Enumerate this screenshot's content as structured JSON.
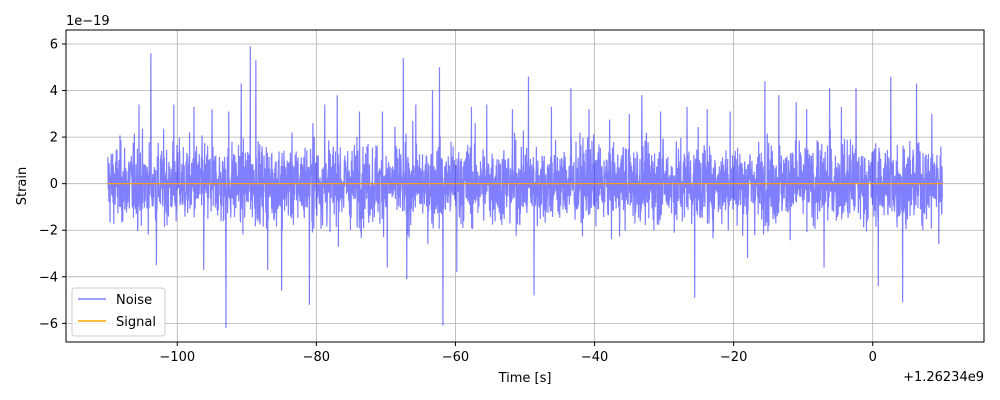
{
  "chart_data": {
    "type": "line",
    "xlabel": "Time [s]",
    "ylabel": "Strain",
    "x_offset_label": "+1.26234e9",
    "y_scale_label": "1e−19",
    "xlim": [
      -116,
      16
    ],
    "ylim": [
      -6.8,
      6.6
    ],
    "x_ticks": [
      -100,
      -80,
      -60,
      -40,
      -20,
      0
    ],
    "x_tick_labels": [
      "−100",
      "−80",
      "−60",
      "−40",
      "−20",
      "0"
    ],
    "y_ticks": [
      -6,
      -4,
      -2,
      0,
      2,
      4,
      6
    ],
    "y_tick_labels": [
      "−6",
      "−4",
      "−2",
      "0",
      "2",
      "4",
      "6"
    ],
    "grid": true,
    "legend_position": "lower-left",
    "series": [
      {
        "name": "Noise",
        "color": "#0000ff",
        "alpha": 0.5,
        "x_range": [
          -110,
          10
        ],
        "typical_amplitude": 2.2,
        "peaks": [
          {
            "x": -105.5,
            "y": 3.4
          },
          {
            "x": -103.8,
            "y": 5.6
          },
          {
            "x": -103.0,
            "y": -3.5
          },
          {
            "x": -100.5,
            "y": 3.4
          },
          {
            "x": -97.6,
            "y": 3.3
          },
          {
            "x": -96.2,
            "y": -3.7
          },
          {
            "x": -95.0,
            "y": 3.2
          },
          {
            "x": -93.0,
            "y": -6.2
          },
          {
            "x": -92.6,
            "y": 3.1
          },
          {
            "x": -90.8,
            "y": 4.3
          },
          {
            "x": -89.5,
            "y": 5.9
          },
          {
            "x": -88.7,
            "y": 5.3
          },
          {
            "x": -87.0,
            "y": -3.7
          },
          {
            "x": -85.0,
            "y": -4.6
          },
          {
            "x": -81.0,
            "y": -5.2
          },
          {
            "x": -80.5,
            "y": 2.6
          },
          {
            "x": -78.8,
            "y": 3.4
          },
          {
            "x": -77.0,
            "y": 3.8
          },
          {
            "x": -73.8,
            "y": 3.1
          },
          {
            "x": -70.5,
            "y": 3.1
          },
          {
            "x": -69.8,
            "y": -3.6
          },
          {
            "x": -67.5,
            "y": 5.4
          },
          {
            "x": -67.0,
            "y": -4.1
          },
          {
            "x": -65.7,
            "y": 3.4
          },
          {
            "x": -63.3,
            "y": 4.0
          },
          {
            "x": -62.3,
            "y": 5.0
          },
          {
            "x": -61.8,
            "y": -6.1
          },
          {
            "x": -59.8,
            "y": -3.8
          },
          {
            "x": -57.7,
            "y": 3.3
          },
          {
            "x": -55.5,
            "y": 3.4
          },
          {
            "x": -51.8,
            "y": 3.2
          },
          {
            "x": -49.5,
            "y": 4.6
          },
          {
            "x": -48.7,
            "y": -4.8
          },
          {
            "x": -46.2,
            "y": 3.3
          },
          {
            "x": -43.4,
            "y": 4.1
          },
          {
            "x": -40.8,
            "y": 3.2
          },
          {
            "x": -35.0,
            "y": 3.0
          },
          {
            "x": -33.2,
            "y": 3.8
          },
          {
            "x": -30.5,
            "y": 3.1
          },
          {
            "x": -26.7,
            "y": 3.3
          },
          {
            "x": -25.6,
            "y": -4.9
          },
          {
            "x": -23.8,
            "y": 3.2
          },
          {
            "x": -20.5,
            "y": 3.1
          },
          {
            "x": -18.0,
            "y": -3.2
          },
          {
            "x": -15.5,
            "y": 4.4
          },
          {
            "x": -13.5,
            "y": 3.8
          },
          {
            "x": -11.0,
            "y": 3.5
          },
          {
            "x": -9.5,
            "y": 3.2
          },
          {
            "x": -7.0,
            "y": -3.6
          },
          {
            "x": -6.2,
            "y": 4.1
          },
          {
            "x": -4.5,
            "y": 3.3
          },
          {
            "x": -2.4,
            "y": 4.1
          },
          {
            "x": 0.8,
            "y": -4.4
          },
          {
            "x": 2.6,
            "y": 4.6
          },
          {
            "x": 4.3,
            "y": -5.1
          },
          {
            "x": 6.3,
            "y": 4.3
          },
          {
            "x": 8.5,
            "y": 3.0
          },
          {
            "x": 9.5,
            "y": -2.6
          }
        ]
      },
      {
        "name": "Signal",
        "color": "#ffa500",
        "x": [
          -110,
          10
        ],
        "y": [
          0,
          0
        ]
      }
    ]
  }
}
